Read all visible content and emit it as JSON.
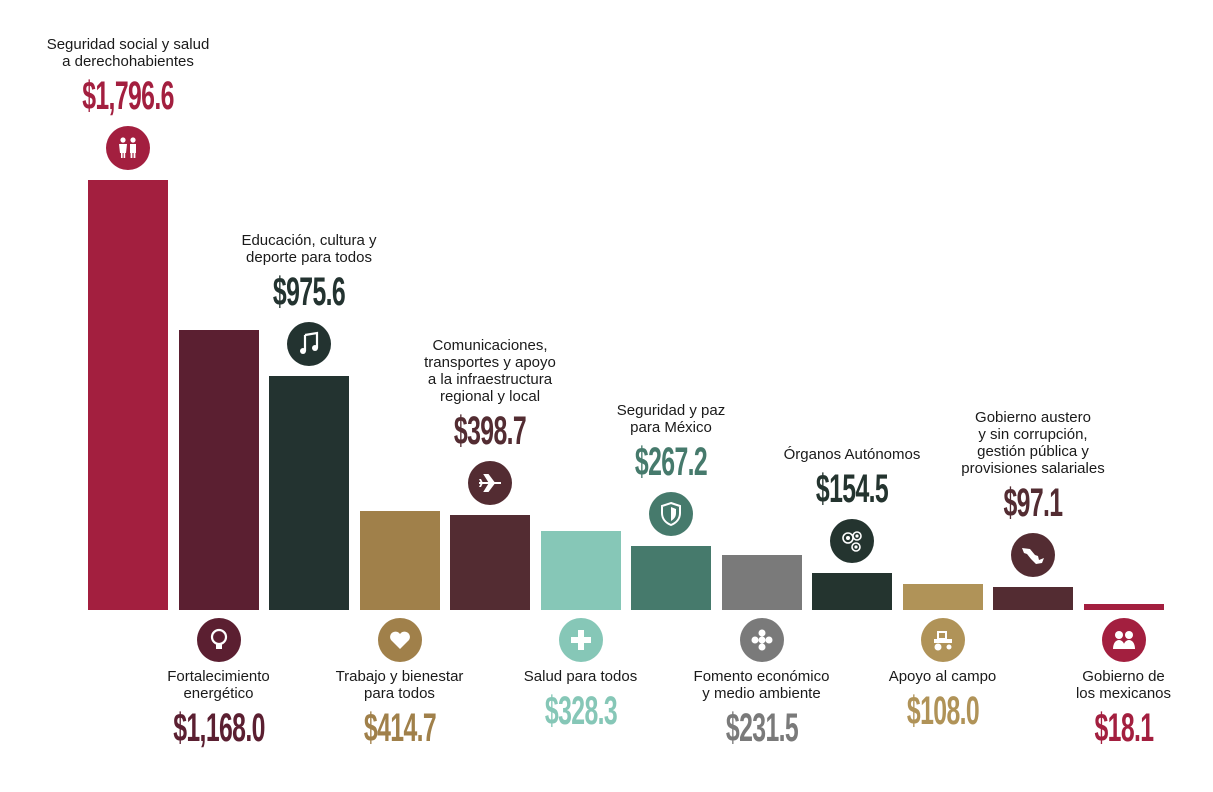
{
  "chart_data": {
    "type": "bar",
    "title": "",
    "xlabel": "",
    "ylabel": "",
    "ylim": [
      0,
      1796.6
    ],
    "categories": [
      "Seguridad social y salud\na derechohabientes",
      "Fortalecimiento\nenergético",
      "Educación, cultura y\ndeporte para todos",
      "Trabajo y bienestar\npara todos",
      "Comunicaciones,\ntransportes y apoyo\na la infraestructura\nregional y local",
      "Salud para todos",
      "Seguridad y paz\npara México",
      "Fomento económico\ny medio ambiente",
      "Órganos Autónomos",
      "Apoyo al campo",
      "Gobierno austero\ny sin corrupción,\ngestión pública y\nprovisiones salariales",
      "Gobierno de\nlos mexicanos"
    ],
    "values": [
      1796.6,
      1168.0,
      975.6,
      414.7,
      398.7,
      328.3,
      267.2,
      231.5,
      154.5,
      108.0,
      97.1,
      18.1
    ],
    "value_labels": [
      "$1,796.6",
      "$1,168.0",
      "$975.6",
      "$414.7",
      "$398.7",
      "$328.3",
      "$267.2",
      "$231.5",
      "$154.5",
      "$108.0",
      "$97.1",
      "$18.1"
    ],
    "label_positions": [
      "top",
      "bottom",
      "top",
      "bottom",
      "top",
      "bottom",
      "top",
      "bottom",
      "top",
      "bottom",
      "top",
      "bottom"
    ],
    "colors": [
      "#a31f3f",
      "#5b1f31",
      "#233330",
      "#a0804a",
      "#532c32",
      "#86c7b7",
      "#467a6c",
      "#7a7a7a",
      "#24342f",
      "#b09358",
      "#532c32",
      "#a31f3f"
    ],
    "icons": [
      "people-icon",
      "lightbulb-icon",
      "music-note-icon",
      "heart-icon",
      "airplane-icon",
      "medical-cross-icon",
      "shield-icon",
      "flower-icon",
      "group-icon",
      "tractor-icon",
      "mexico-map-icon",
      "officials-icon"
    ]
  }
}
